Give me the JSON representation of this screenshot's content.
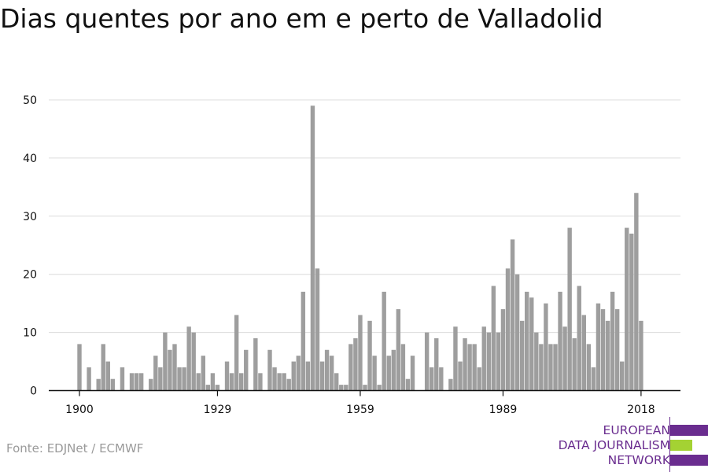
{
  "chart_data": {
    "type": "bar",
    "title": "Dias quentes por ano em e perto de Valladolid",
    "xlabel": "",
    "ylabel": "",
    "x_start": 1900,
    "x_end": 2018,
    "x_tick_labels": [
      "1900",
      "1929",
      "1959",
      "1989",
      "2018"
    ],
    "y_ticks": [
      "0",
      "10",
      "20",
      "30",
      "40",
      "50"
    ],
    "ylim": [
      0,
      50
    ],
    "grid": true,
    "bar_color": "#9e9e9e",
    "values": [
      8,
      0,
      4,
      0,
      2,
      8,
      5,
      2,
      0,
      4,
      0,
      3,
      3,
      3,
      0,
      2,
      6,
      4,
      10,
      7,
      8,
      4,
      4,
      11,
      10,
      3,
      6,
      1,
      3,
      1,
      0,
      5,
      3,
      13,
      3,
      7,
      0,
      9,
      3,
      0,
      7,
      4,
      3,
      3,
      2,
      5,
      6,
      17,
      5,
      49,
      21,
      5,
      7,
      6,
      3,
      1,
      1,
      8,
      9,
      13,
      1,
      12,
      6,
      1,
      17,
      6,
      7,
      14,
      8,
      2,
      6,
      0,
      0,
      10,
      4,
      9,
      4,
      0,
      2,
      11,
      5,
      9,
      8,
      8,
      4,
      11,
      10,
      18,
      10,
      14,
      21,
      26,
      20,
      12,
      17,
      16,
      10,
      8,
      15,
      8,
      8,
      17,
      11,
      28,
      9,
      18,
      13,
      8,
      4,
      15,
      14,
      12,
      17,
      14,
      5,
      28,
      27,
      34,
      12
    ]
  },
  "source": "Fonte: EDJNet / ECMWF",
  "logo": {
    "line1": "EUROPEAN",
    "line2": "DATA JOURNALISM",
    "line3": "NETWORK",
    "purple": "#6a2d8f",
    "green": "#a4d233"
  }
}
